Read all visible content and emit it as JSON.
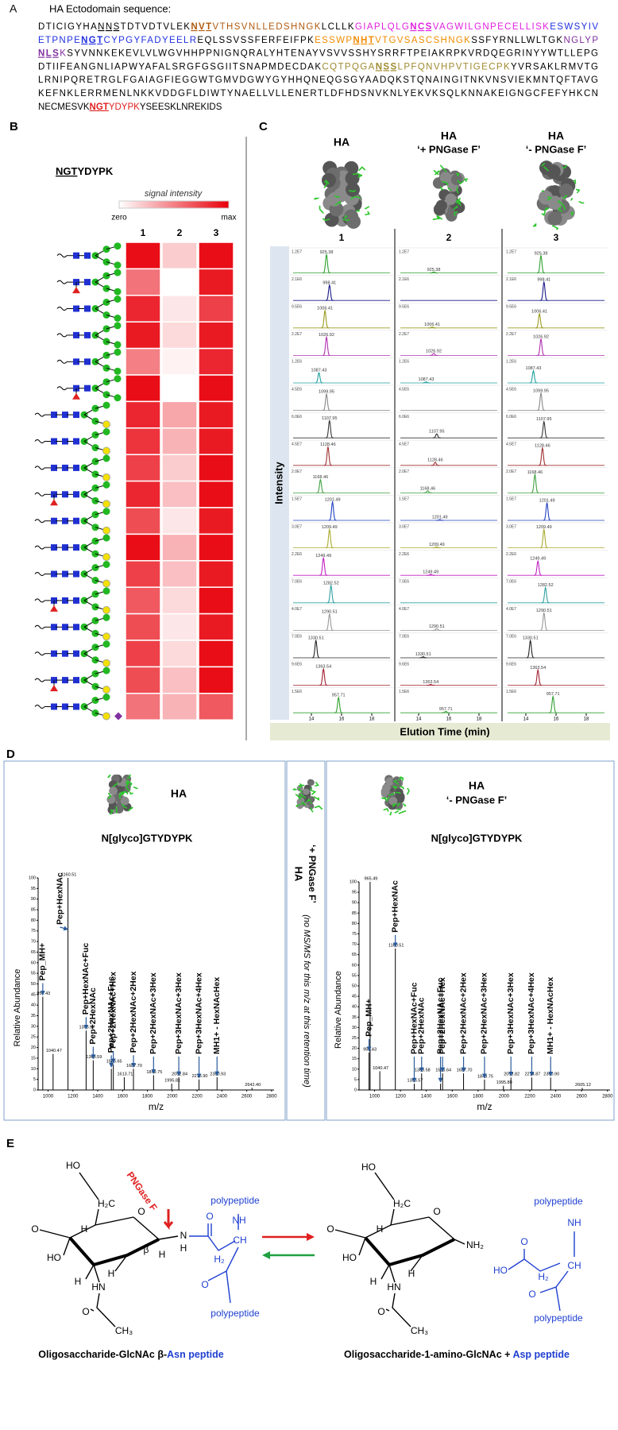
{
  "panel_a": {
    "label": "A",
    "title": "HA Ectodomain sequence:",
    "lines": [
      [
        {
          "t": "DTICIGYHA"
        },
        {
          "t": "NNS",
          "u": true
        },
        {
          "t": "TDTVDTVLEK"
        },
        {
          "t": "NVT",
          "u": true,
          "b": true,
          "c": "#b05a10"
        },
        {
          "t": "VTHSVNLLEDSHNGK",
          "c": "#b05a10"
        },
        {
          "t": "LCLLK"
        },
        {
          "t": "GIAPLQLG",
          "c": "#e020e0"
        },
        {
          "t": "NCS",
          "u": true,
          "b": true,
          "c": "#e020e0"
        },
        {
          "t": "VAGWILGNPECELLISK",
          "c": "#e020e0"
        },
        {
          "t": "ESWSYIV",
          "c": "#2030e0"
        }
      ],
      [
        {
          "t": "ETPNPE",
          "c": "#2030e0"
        },
        {
          "t": "NGT",
          "u": true,
          "b": true,
          "c": "#2030e0"
        },
        {
          "t": "CYPGYFADYEELR",
          "c": "#2030e0"
        },
        {
          "t": "EQLSSVSSFERFEIFPK"
        },
        {
          "t": "ESSWP",
          "c": "#f08c00"
        },
        {
          "t": "NHT",
          "u": true,
          "b": true,
          "c": "#f08c00"
        },
        {
          "t": "VTGVSASCSHNGK",
          "c": "#f08c00"
        },
        {
          "t": "SSFYRNLLWLTGK"
        },
        {
          "t": "NGLYP",
          "c": "#8030a0"
        }
      ],
      [
        {
          "t": "NLS",
          "u": true,
          "b": true,
          "c": "#8030a0"
        },
        {
          "t": "K",
          "c": "#8030a0"
        },
        {
          "t": "SYVNNKEKEVLVLWGVHHPPNIGNQRALYHTENAYVSVVSSHYSRRFTPEIAKRPKVRDQEGRINYYWTLLEPG"
        }
      ],
      [
        {
          "t": "DTIIFEANGNLIAPWYAFALSRGFGSGIITSNAPMDECDAK"
        },
        {
          "t": "CQTPQGA",
          "c": "#a08a30"
        },
        {
          "t": "NSS",
          "u": true,
          "b": true,
          "c": "#a08a30"
        },
        {
          "t": "LPFQNVHPVTIGECPK",
          "c": "#a08a30"
        },
        {
          "t": "YVRSAKLRMVTG"
        }
      ],
      [
        {
          "t": "LRNIPQRETRGLFGAIAGFIEGGWTGMVDGWYGYHHQNEQGSGYAADQKSTQNAINGITNKVNSVIEKMNTQFTAVG"
        }
      ],
      [
        {
          "t": "KEFNKLERRMENLNKKVDDGFLDIWTYNAELLVLLENERTLDFHDSNVKNLYEKVKSQLKNNAKEIGNGCFEFYHKCN"
        }
      ],
      [
        {
          "t": "NECMESVK"
        },
        {
          "t": "NGT",
          "u": true,
          "b": true,
          "c": "#e02020"
        },
        {
          "t": "YDYPK",
          "c": "#e02020"
        },
        {
          "t": "YSEESKLNREKIDS"
        }
      ]
    ]
  },
  "panel_b": {
    "label": "B",
    "peptide": [
      {
        "t": "NGT",
        "u": true
      },
      {
        "t": "YDYPK"
      }
    ],
    "legend_title": "signal intensity",
    "legend_min": "zero",
    "legend_max": "max",
    "columns": [
      "1",
      "2",
      "3"
    ],
    "color": "#e8000b",
    "rows": [
      [
        0.95,
        0.2,
        0.95
      ],
      [
        0.55,
        0,
        0.9
      ],
      [
        0.85,
        0.1,
        0.75
      ],
      [
        0.9,
        0.15,
        0.9
      ],
      [
        0.5,
        0.05,
        0.85
      ],
      [
        0.95,
        0,
        0.95
      ],
      [
        0.85,
        0.35,
        0.9
      ],
      [
        0.8,
        0.3,
        0.9
      ],
      [
        0.75,
        0.2,
        0.95
      ],
      [
        0.85,
        0.25,
        0.95
      ],
      [
        0.7,
        0.1,
        0.9
      ],
      [
        0.95,
        0.3,
        0.95
      ],
      [
        0.75,
        0.25,
        0.9
      ],
      [
        0.65,
        0.15,
        0.95
      ],
      [
        0.7,
        0.1,
        0.9
      ],
      [
        0.75,
        0.15,
        0.95
      ],
      [
        0.7,
        0.25,
        0.95
      ],
      [
        0.55,
        0.3,
        0.65
      ]
    ]
  },
  "panel_c": {
    "label": "C",
    "columns": [
      {
        "title": "HA",
        "number": "1"
      },
      {
        "title": "HA",
        "subtitle": "‘+ PNGase F’",
        "number": "2"
      },
      {
        "title": "HA",
        "subtitle": "‘- PNGase F’",
        "number": "3"
      }
    ],
    "y_label": "Intensity",
    "x_label": "Elution Time (min)",
    "xlim": [
      13,
      19
    ],
    "xticks": [
      14,
      16,
      18
    ],
    "traces": [
      {
        "label": "925.38",
        "color": "#2fa02f",
        "scale": "1.2E7",
        "time": 15.0,
        "heights": [
          0.9,
          0.05,
          0.85
        ]
      },
      {
        "label": "998.41",
        "color": "#1a1a8a",
        "scale": "2.1E6",
        "time": 15.2,
        "heights": [
          0.75,
          null,
          0.9
        ]
      },
      {
        "label": "1006.41",
        "color": "#9a9a20",
        "scale": "9.5E6",
        "time": 14.9,
        "heights": [
          0.85,
          0.05,
          0.7
        ]
      },
      {
        "label": "1026.92",
        "color": "#b030b0",
        "scale": "2.2E7",
        "time": 15.0,
        "heights": [
          0.9,
          0.1,
          0.8
        ]
      },
      {
        "label": "1087.43",
        "color": "#20a0a0",
        "scale": "1.2E6",
        "time": 14.5,
        "heights": [
          0.5,
          0.05,
          0.6
        ]
      },
      {
        "label": "1099.95",
        "color": "#888888",
        "scale": "4.5E6",
        "time": 15.0,
        "heights": [
          0.8,
          null,
          0.85
        ]
      },
      {
        "label": "1107.95",
        "color": "#333333",
        "scale": "6.0E6",
        "time": 15.2,
        "heights": [
          0.85,
          0.2,
          0.8
        ]
      },
      {
        "label": "1128.46",
        "color": "#a03030",
        "scale": "4.5E7",
        "time": 15.1,
        "heights": [
          0.9,
          0.15,
          0.85
        ]
      },
      {
        "label": "1168.46",
        "color": "#40a040",
        "scale": "2.0E7",
        "time": 14.6,
        "heights": [
          0.65,
          0.1,
          0.9
        ]
      },
      {
        "label": "1201.49",
        "color": "#2040c0",
        "scale": "1.5E7",
        "time": 15.4,
        "heights": [
          0.9,
          0.03,
          0.85
        ]
      },
      {
        "label": "1209.49",
        "color": "#aaaa30",
        "scale": "3.0E7",
        "time": 15.2,
        "heights": [
          0.9,
          0.05,
          0.9
        ]
      },
      {
        "label": "1249.49",
        "color": "#c020c0",
        "scale": "2.2E6",
        "time": 14.8,
        "heights": [
          0.85,
          0.05,
          0.7
        ]
      },
      {
        "label": "1282.52",
        "color": "#30a0a0",
        "scale": "7.0E6",
        "time": 15.3,
        "heights": [
          0.85,
          null,
          0.75
        ]
      },
      {
        "label": "1290.51",
        "color": "#999999",
        "scale": "4.0E7",
        "time": 15.2,
        "heights": [
          0.8,
          0.08,
          0.85
        ]
      },
      {
        "label": "1330.51",
        "color": "#222222",
        "scale": "7.0E6",
        "time": 14.3,
        "heights": [
          0.85,
          0.05,
          0.85
        ]
      },
      {
        "label": "1363.54",
        "color": "#a02030",
        "scale": "9.6E6",
        "time": 14.8,
        "heights": [
          0.8,
          0.04,
          0.75
        ]
      },
      {
        "label": "957.71",
        "color": "#30a030",
        "scale": "1.5E6",
        "time": 15.8,
        "heights": [
          0.75,
          0.07,
          0.8
        ]
      }
    ]
  },
  "panel_d": {
    "label": "D",
    "left": {
      "title": "HA",
      "subtitle": "N[glyco]GTYDYPK",
      "spectrum": {
        "y_label": "Relative Abundance",
        "x_label": "m/z",
        "xlim": [
          920,
          2820
        ],
        "ylim": [
          0,
          100
        ],
        "xticks": [
          1000,
          1200,
          1400,
          1600,
          1800,
          2000,
          2200,
          2400,
          2600,
          2800
        ],
        "yticks": [
          0,
          5,
          10,
          15,
          20,
          25,
          30,
          35,
          40,
          45,
          50,
          55,
          60,
          65,
          70,
          75,
          80,
          85,
          90,
          95,
          100
        ],
        "peaks": [
          {
            "mz": 957.43,
            "ab": 44,
            "label": "957.43",
            "annotation": "Pep_MH+"
          },
          {
            "mz": 1040.47,
            "ab": 17,
            "label": "1040.47"
          },
          {
            "mz": 1160.51,
            "ab": 100,
            "label": "1160.51",
            "annotation": "Pep+HexNAc"
          },
          {
            "mz": 1306.57,
            "ab": 28,
            "label": "1306.57",
            "annotation": "Pep+HexNAc+Fuc"
          },
          {
            "mz": 1363.59,
            "ab": 14,
            "label": "1363.59",
            "annotation": "Pep+2HexNAc"
          },
          {
            "mz": 1509.65,
            "ab": 10,
            "annotation": "Pep+2HexNAc+Fuc"
          },
          {
            "mz": 1525.65,
            "ab": 12,
            "label": "1525.65",
            "annotation": "Pep+2HexNAc+Hex"
          },
          {
            "mz": 1613.71,
            "ab": 6,
            "label": "1613.71"
          },
          {
            "mz": 1687.7,
            "ab": 10,
            "label": "1687.70",
            "annotation": "Pep+2HexNAc+2Hex"
          },
          {
            "mz": 1849.75,
            "ab": 7,
            "label": "1849.75",
            "annotation": "Pep+2HexNAc+3Hex"
          },
          {
            "mz": 1995.81,
            "ab": 3,
            "label": "1995.81"
          },
          {
            "mz": 2052.84,
            "ab": 6,
            "label": "2052.84",
            "annotation": "Pep+3HexNAc+3Hex"
          },
          {
            "mz": 2215.9,
            "ab": 5,
            "label": "2215.90",
            "annotation": "Pep+3HexNAc+4Hex"
          },
          {
            "mz": 2360.93,
            "ab": 6,
            "label": "2360.93",
            "annotation": "MH1+ - HexNAcHex"
          },
          {
            "mz": 2642.4,
            "ab": 1,
            "label": "2642.40"
          }
        ]
      }
    },
    "middle": {
      "title": "HA",
      "subtitle": "‘+ PNGase F’",
      "note": "(no MS/MS for this m/z at this retention time)"
    },
    "right": {
      "title": "HA",
      "subtitle": "‘- PNGase F’",
      "peptide": "N[glyco]GTYDYPK",
      "spectrum": {
        "y_label": "Relative Abundance",
        "x_label": "m/z",
        "xlim": [
          880,
          2820
        ],
        "ylim": [
          0,
          100
        ],
        "xticks": [
          1000,
          1200,
          1400,
          1600,
          1800,
          2000,
          2200,
          2400,
          2600,
          2800
        ],
        "yticks": [
          0,
          5,
          10,
          15,
          20,
          25,
          30,
          35,
          40,
          45,
          50,
          55,
          60,
          65,
          70,
          75,
          80,
          85,
          90,
          95,
          100
        ],
        "peaks": [
          {
            "mz": 965.49,
            "ab": 100,
            "label": "965.49"
          },
          {
            "mz": 957.43,
            "ab": 18,
            "label": "957.43",
            "annotation": "Pep_MH+"
          },
          {
            "mz": 1040.47,
            "ab": 9,
            "label": "1040.47"
          },
          {
            "mz": 1160.51,
            "ab": 68,
            "label": "1160.51",
            "annotation": "Pep+HexNAc"
          },
          {
            "mz": 1306.57,
            "ab": 3,
            "label": "1306.57",
            "annotation": "Pep+HexNAc+Fuc"
          },
          {
            "mz": 1363.58,
            "ab": 8,
            "label": "1363.58",
            "annotation": "Pep+2HexNAc"
          },
          {
            "mz": 1509.64,
            "ab": 3,
            "annotation": "Pep+2HexNAc+Fuc"
          },
          {
            "mz": 1525.64,
            "ab": 8,
            "label": "1525.64",
            "annotation": "Pep+2HexNAc+Hex"
          },
          {
            "mz": 1687.7,
            "ab": 8,
            "label": "1687.70",
            "annotation": "Pep+2HexNAc+2Hex"
          },
          {
            "mz": 1849.75,
            "ab": 5,
            "label": "1849.75",
            "annotation": "Pep+2HexNAc+3Hex"
          },
          {
            "mz": 1995.8,
            "ab": 2,
            "label": "1995.80"
          },
          {
            "mz": 2053.82,
            "ab": 6,
            "label": "2053.82",
            "annotation": "Pep+3HexNAc+3Hex"
          },
          {
            "mz": 2214.87,
            "ab": 6,
            "label": "2214.87",
            "annotation": "Pep+3HexNAc+4Hex"
          },
          {
            "mz": 2360.9,
            "ab": 6,
            "label": "2360.90",
            "annotation": "MH1+ - HexNAcHex"
          },
          {
            "mz": 2605.12,
            "ab": 1,
            "label": "2605.12"
          }
        ]
      }
    }
  },
  "panel_e": {
    "label": "E",
    "enzyme": "PNGase F",
    "left_atoms": [
      "HO",
      "H₂C",
      "O",
      "O",
      "H",
      "HO",
      "H",
      "H",
      "β",
      "N",
      "H",
      "H",
      "HN",
      "O",
      "CH₃",
      "polypeptide",
      "NH",
      "O",
      "H₂",
      "CH",
      "O",
      "polypeptide"
    ],
    "right_atoms": [
      "HO",
      "H₂C",
      "O",
      "O",
      "H",
      "HO",
      "NH₂",
      "H",
      "H",
      "HN",
      "O",
      "CH₃",
      "polypeptide",
      "NH",
      "HO",
      "O",
      "H₂",
      "CH",
      "O",
      "polypeptide"
    ],
    "left_caption": [
      {
        "t": "Oligosaccharide-GlcNAc β-"
      },
      {
        "t": "Asn peptide",
        "c": "#2040d0"
      }
    ],
    "right_caption": [
      {
        "t": "Oligosaccharide-1-amino-GlcNAc + "
      },
      {
        "t": "Asp peptide",
        "c": "#2040d0"
      }
    ]
  }
}
